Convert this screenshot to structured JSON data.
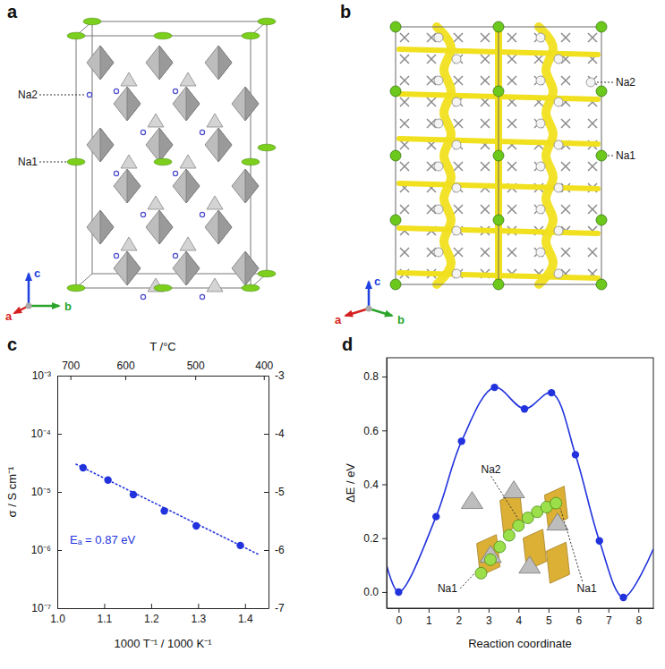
{
  "structures": [
    {
      "panel_label": "a",
      "labels": [
        "Na2",
        "Na1"
      ],
      "axes": [
        "a",
        "b",
        "c"
      ]
    },
    {
      "panel_label": "b",
      "labels": [
        "Na2",
        "Na1"
      ],
      "axes": [
        "a",
        "b",
        "c"
      ]
    }
  ],
  "chart_data": [
    {
      "panel_label": "c",
      "type": "scatter",
      "x_label": "1000 T⁻¹ / 1000 K⁻¹",
      "x2_label": "T /°C",
      "y_label": "σ / S cm⁻¹",
      "log": "y",
      "xlim": [
        1.0,
        1.45
      ],
      "xticks": [
        {
          "value": 1.0,
          "label": "1.0"
        },
        1.1,
        1.2,
        1.3,
        1.4
      ],
      "x2ticks": [
        {
          "value": 1.028,
          "label": "700"
        },
        {
          "value": 1.145,
          "label": "600"
        },
        {
          "value": 1.294,
          "label": "500"
        },
        {
          "value": 1.44,
          "label": "400"
        }
      ],
      "ylim": [
        1e-07,
        0.001
      ],
      "yticks": [
        {
          "value": 1e-07,
          "label": "10⁻⁷"
        },
        {
          "value": 1e-06,
          "label": "10⁻⁶"
        },
        {
          "value": 1e-05,
          "label": "10⁻⁵"
        },
        {
          "value": 0.0001,
          "label": "10⁻⁴"
        },
        {
          "value": 0.001,
          "label": "10⁻³"
        }
      ],
      "y2lim": [
        -7,
        -3
      ],
      "y2ticks": [
        -3,
        -4,
        -5,
        -6,
        -7
      ],
      "annotations": [
        "Eₐ = 0.87 eV"
      ],
      "series": [
        {
          "type": "scatter",
          "color": "#2233dd",
          "marker": "circle",
          "x": [
            1.055,
            1.108,
            1.162,
            1.228,
            1.296,
            1.39
          ],
          "values": [
            2.6e-05,
            1.6e-05,
            9e-06,
            4.7e-06,
            2.6e-06,
            1.2e-06
          ]
        },
        {
          "type": "line",
          "color": "#2233dd",
          "line_style": "dotted",
          "x": [
            1.04,
            1.43
          ],
          "values": [
            2.99e-05,
            8.3e-07
          ]
        }
      ]
    },
    {
      "panel_label": "d",
      "type": "line",
      "x_label": "Reaction coordinate",
      "y_label": "ΔE / eV",
      "xlim": [
        -0.4,
        8.5
      ],
      "xticks": [
        0,
        1,
        2,
        3,
        4,
        5,
        6,
        7,
        8
      ],
      "ylim": [
        -0.06,
        0.87
      ],
      "yticks": [
        {
          "value": 0,
          "label": "0.0"
        },
        0.2,
        0.4,
        0.6,
        0.8
      ],
      "annotations": [
        "Na2",
        "Na1",
        "Na1"
      ],
      "series": [
        {
          "type": "line",
          "color": "#2233dd",
          "line_style": "solid",
          "x": [
            -0.4,
            0,
            1.25,
            2.1,
            3.2,
            4.2,
            5.1,
            5.9,
            6.7,
            7.5,
            8.5
          ],
          "values": [
            0.1,
            0,
            0.28,
            0.56,
            0.76,
            0.68,
            0.74,
            0.51,
            0.19,
            -0.02,
            0.16
          ]
        },
        {
          "type": "scatter",
          "color": "#2233dd",
          "marker": "circle",
          "x": [
            0,
            1.25,
            2.1,
            3.2,
            4.2,
            5.1,
            5.9,
            6.7,
            7.5
          ],
          "values": [
            0,
            0.28,
            0.56,
            0.76,
            0.68,
            0.74,
            0.51,
            0.19,
            -0.02
          ]
        }
      ]
    }
  ]
}
